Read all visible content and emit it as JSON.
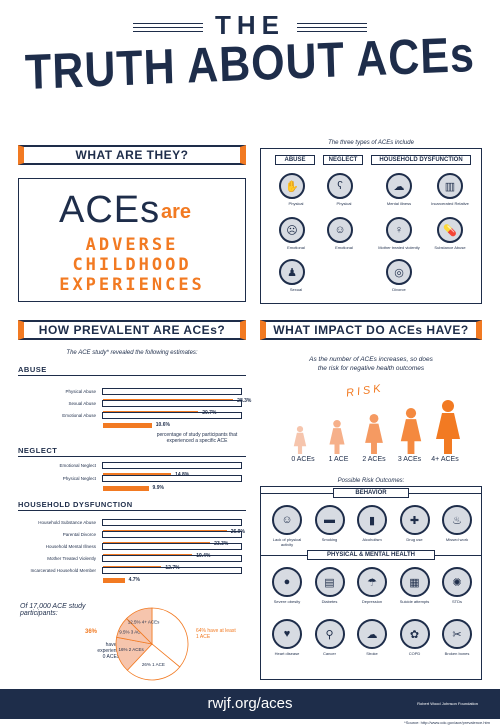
{
  "title": {
    "line1": "THE",
    "line2": "TRUTH ABOUT ACEs"
  },
  "what": {
    "heading": "WHAT ARE THEY?",
    "aces": "ACEs",
    "are": "are",
    "w1": "ADVERSE",
    "w2": "CHILDHOOD",
    "w3": "EXPERIENCES"
  },
  "types": {
    "intro": "The three types of ACEs include",
    "cols": [
      "ABUSE",
      "NEGLECT",
      "HOUSEHOLD DYSFUNCTION"
    ],
    "abuse": [
      "Physical",
      "Emotional",
      "Sexual"
    ],
    "neglect": [
      "Physical",
      "Emotional"
    ],
    "household": [
      "Mental illness",
      "Incarcerated Relative",
      "Mother treated violently",
      "Substance Abuse",
      "Divorce"
    ]
  },
  "prevalent": {
    "heading": "HOW PREVALENT ARE ACEs?",
    "intro": "The ACE study* revealed the following estimates:",
    "abuse_title": "ABUSE",
    "abuse": [
      {
        "label": "Physical Abuse",
        "value": 28.3,
        "text": "28.3%"
      },
      {
        "label": "Sexual Abuse",
        "value": 20.7,
        "text": "20.7%"
      },
      {
        "label": "Emotional Abuse",
        "value": 10.6,
        "text": "10.6%"
      }
    ],
    "note": "percentage of study participants that experienced a specific ACE",
    "neglect_title": "NEGLECT",
    "neglect": [
      {
        "label": "Emotional Neglect",
        "value": 14.8,
        "text": "14.8%"
      },
      {
        "label": "Physical Neglect",
        "value": 9.9,
        "text": "9.9%"
      }
    ],
    "house_title": "HOUSEHOLD DYSFUNCTION",
    "house": [
      {
        "label": "Household Substance Abuse",
        "value": 26.9,
        "text": "26.9%"
      },
      {
        "label": "Parental Divorce",
        "value": 23.3,
        "text": "23.3%"
      },
      {
        "label": "Household Mental Illness",
        "value": 19.4,
        "text": "19.4%"
      },
      {
        "label": "Mother Treated Violently",
        "value": 12.7,
        "text": "12.7%"
      },
      {
        "label": "Incarcerated Household Member",
        "value": 4.7,
        "text": "4.7%"
      }
    ],
    "participants": "Of 17,000 ACE study participants:",
    "pie": [
      {
        "label": "36%",
        "sub": "have experienced 0 ACEs",
        "value": 36
      },
      {
        "label": "26%",
        "sub": "1 ACE",
        "value": 26
      },
      {
        "label": "16%",
        "sub": "2 ACEs",
        "value": 16
      },
      {
        "label": "9.5%",
        "sub": "3 ACEs",
        "value": 9.5
      },
      {
        "label": "12.5%",
        "sub": "4+ ACEs",
        "value": 12.5
      }
    ],
    "left_pct": "36%",
    "left_sub": "have experienced 0 ACEs",
    "right_note": "64% have at least 1 ACE"
  },
  "impact": {
    "heading": "WHAT IMPACT DO ACEs HAVE?",
    "intro1": "As the number of ACEs increases, so does",
    "intro2": "the risk for negative health outcomes",
    "risk": "RISK",
    "levels": [
      "0 ACEs",
      "1 ACE",
      "2 ACEs",
      "3 ACEs",
      "4+ ACEs"
    ],
    "possible": "Possible Risk Outcomes:",
    "behavior_title": "BEHAVIOR",
    "behavior": [
      "Lack of physical activity",
      "Smoking",
      "Alcoholism",
      "Drug use",
      "Missed work"
    ],
    "health_title": "PHYSICAL & MENTAL HEALTH",
    "health1": [
      "Severe obesity",
      "Diabetes",
      "Depression",
      "Suicide attempts",
      "STDs"
    ],
    "health2": [
      "Heart disease",
      "Cancer",
      "Stroke",
      "COPD",
      "Broken bones"
    ]
  },
  "footer": {
    "url": "rwjf.org/aces",
    "logo": "Robert Wood Johnson Foundation"
  },
  "source": "*Source: http://www.cdc.gov/ace/prevalence.htm",
  "colors": {
    "navy": "#1e2d4a",
    "orange": "#f27a22",
    "peach": "#f6c5ad"
  }
}
